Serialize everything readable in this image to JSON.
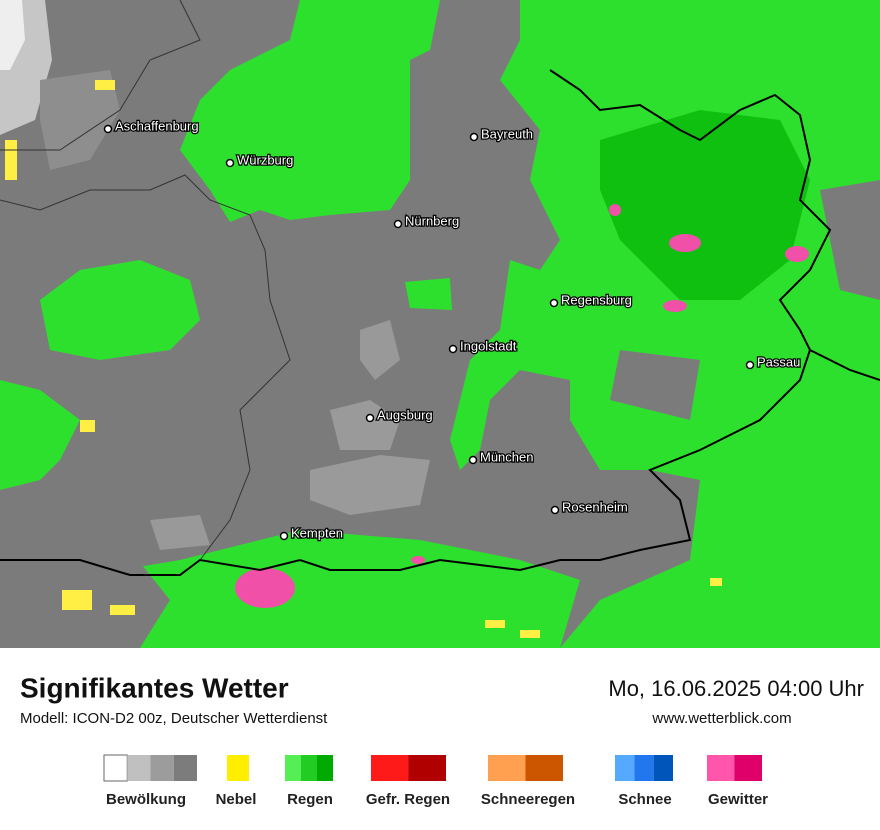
{
  "map": {
    "cities": [
      "Aschaffenburg",
      "Würzburg",
      "Bayreuth",
      "Nürnberg",
      "Regensburg",
      "Ingolstadt",
      "Passau",
      "Augsburg",
      "München",
      "Rosenheim",
      "Kempten"
    ]
  },
  "footer": {
    "title": "Signifikantes Wetter",
    "subtitle": "Modell: ICON-D2 00z, Deutscher Wetterdienst",
    "datetime": "Mo, 16.06.2025 04:00 Uhr",
    "website": "www.wetterblick.com"
  },
  "legend": [
    {
      "label": "Bewölkung",
      "colors": [
        "#ffffff",
        "#c0c0c0",
        "#9c9c9c",
        "#7c7c7c"
      ]
    },
    {
      "label": "Nebel",
      "colors": [
        "#ffee00"
      ]
    },
    {
      "label": "Regen",
      "colors": [
        "#55ee55",
        "#22cc22",
        "#00aa00"
      ]
    },
    {
      "label": "Gefr. Regen",
      "colors": [
        "#ff1a1a",
        "#b00000"
      ]
    },
    {
      "label": "Schneeregen",
      "colors": [
        "#ffa050",
        "#cc5500"
      ]
    },
    {
      "label": "Schnee",
      "colors": [
        "#55aaff",
        "#2277ee",
        "#0055bb"
      ]
    },
    {
      "label": "Gewitter",
      "colors": [
        "#ff55aa",
        "#e0006a"
      ]
    }
  ]
}
